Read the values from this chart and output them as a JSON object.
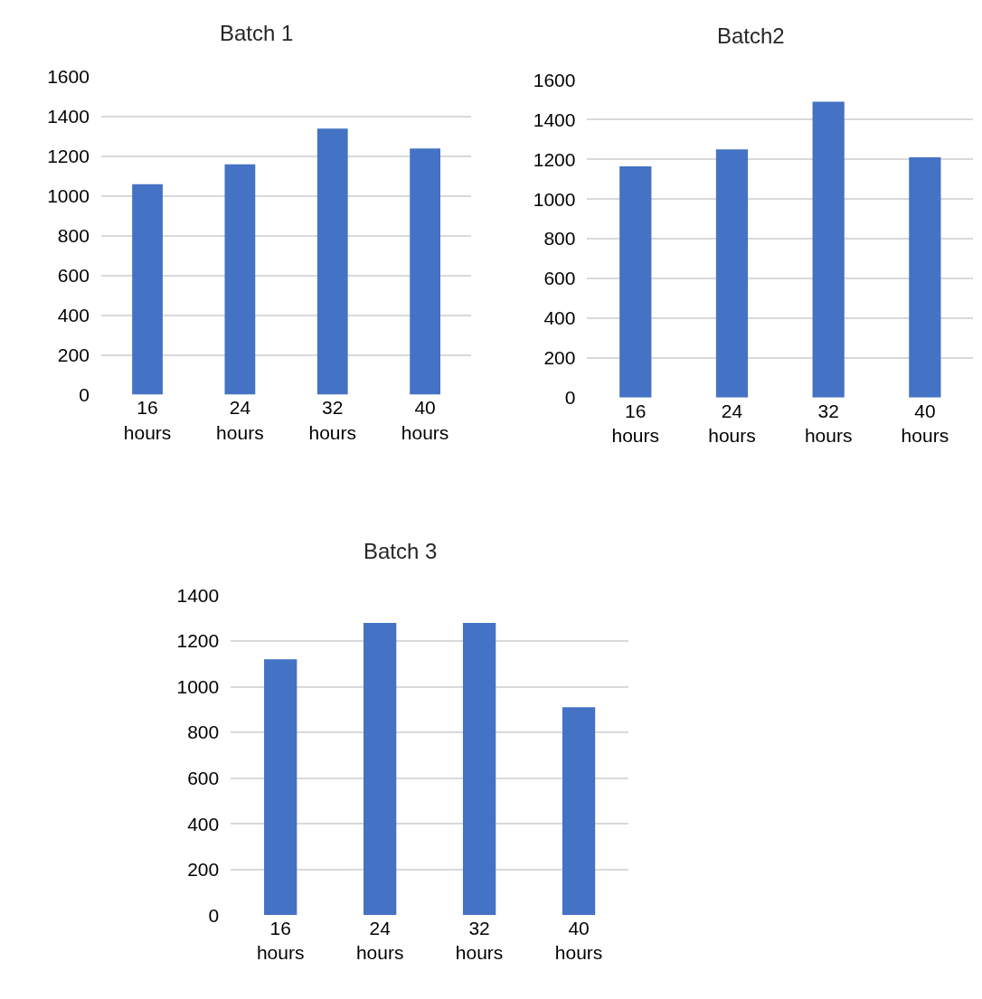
{
  "chart_data": [
    {
      "type": "bar",
      "title": "Batch 1",
      "categories": [
        "16 hours",
        "24 hours",
        "32 hours",
        "40 hours"
      ],
      "values": [
        1060,
        1160,
        1340,
        1240
      ],
      "color": "#4472c4",
      "ylim": [
        0,
        1600
      ],
      "yticks": [
        0,
        200,
        400,
        600,
        800,
        1000,
        1200,
        1400,
        1600
      ],
      "grid": "y"
    },
    {
      "type": "bar",
      "title": "Batch2",
      "categories": [
        "16 hours",
        "24 hours",
        "32 hours",
        "40 hours"
      ],
      "values": [
        1165,
        1250,
        1490,
        1210
      ],
      "color": "#4472c4",
      "ylim": [
        0,
        1600
      ],
      "yticks": [
        0,
        200,
        400,
        600,
        800,
        1000,
        1200,
        1400,
        1600
      ],
      "grid": "y"
    },
    {
      "type": "bar",
      "title": "Batch 3",
      "categories": [
        "16 hours",
        "24 hours",
        "32 hours",
        "40 hours"
      ],
      "values": [
        1120,
        1280,
        1280,
        910
      ],
      "color": "#4472c4",
      "ylim": [
        0,
        1400
      ],
      "yticks": [
        0,
        200,
        400,
        600,
        800,
        1000,
        1200,
        1400
      ],
      "grid": "y"
    }
  ]
}
